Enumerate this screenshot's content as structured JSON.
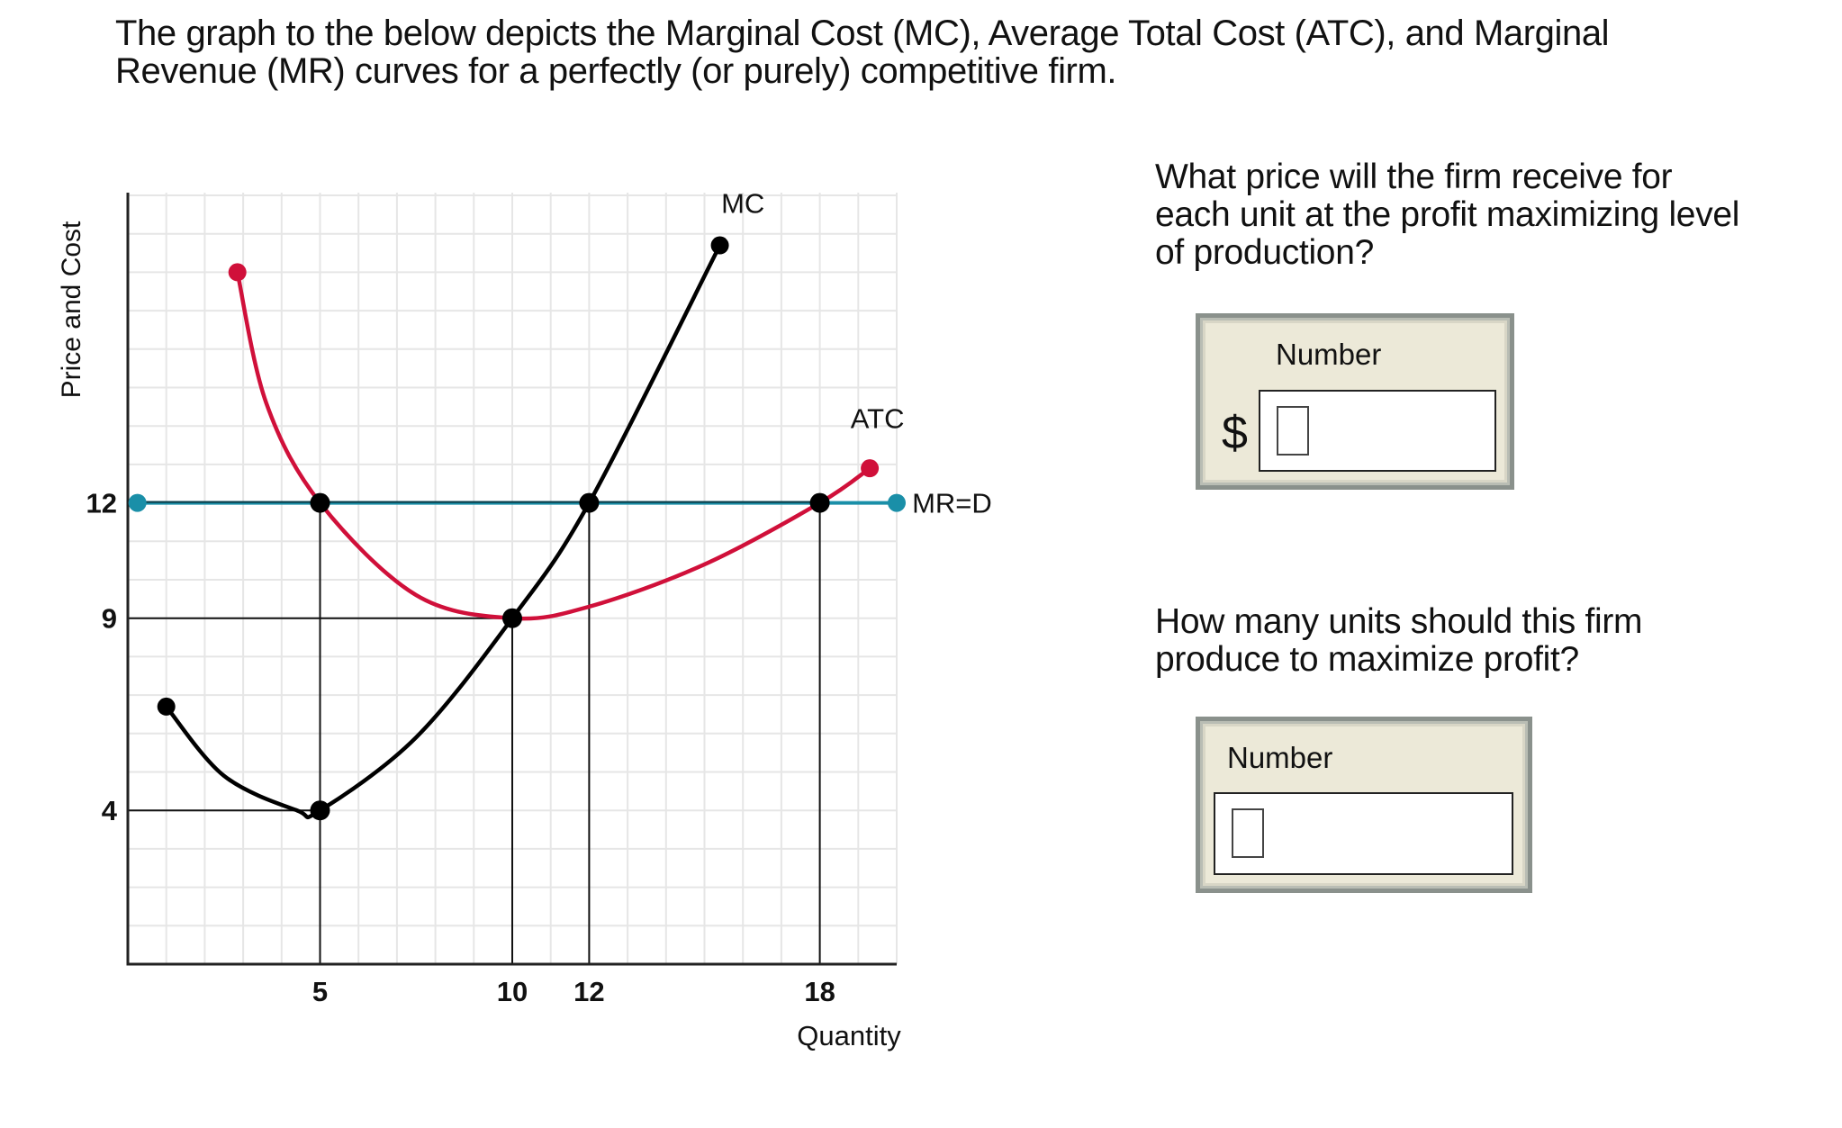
{
  "intro": {
    "line1": "The graph to the below depicts the Marginal Cost (MC), Average Total Cost (ATC), and Marginal",
    "line2": "Revenue (MR) curves for a perfectly (or purely) competitive firm."
  },
  "chart_data": {
    "type": "line",
    "title": "",
    "xlabel": "Quantity",
    "ylabel": "Price and Cost",
    "xlim": [
      0,
      20
    ],
    "ylim": [
      0,
      20
    ],
    "grid": true,
    "x_ticks": [
      5,
      10,
      12,
      18
    ],
    "y_ticks": [
      4,
      9,
      12
    ],
    "colors": {
      "MC": "#000000",
      "ATC": "#d0103a",
      "MR=D": "#1a8fa8",
      "grid": "#e6e6e6",
      "axis": "#222222"
    },
    "series": [
      {
        "name": "MC",
        "label": "MC",
        "points": [
          [
            1.0,
            6.7
          ],
          [
            2.5,
            4.9
          ],
          [
            4.4,
            4.0
          ],
          [
            5,
            4.0
          ],
          [
            7.5,
            5.9
          ],
          [
            10,
            9
          ],
          [
            12,
            12
          ],
          [
            15.4,
            18.7
          ]
        ],
        "marked_points": [
          [
            1.0,
            6.7
          ],
          [
            5,
            4
          ],
          [
            10,
            9
          ],
          [
            12,
            12
          ],
          [
            15.4,
            18.7
          ]
        ],
        "label_pos": [
          16.0,
          19.8
        ]
      },
      {
        "name": "ATC",
        "label": "ATC",
        "points": [
          [
            2.85,
            18.0
          ],
          [
            3.6,
            14.6
          ],
          [
            5,
            12
          ],
          [
            7.5,
            9.6
          ],
          [
            10,
            9
          ],
          [
            12,
            9.3
          ],
          [
            15,
            10.4
          ],
          [
            18,
            12
          ],
          [
            19.3,
            12.9
          ]
        ],
        "marked_points": [
          [
            2.85,
            18.0
          ],
          [
            5,
            12
          ],
          [
            18,
            12
          ],
          [
            19.3,
            12.9
          ]
        ],
        "label_pos": [
          19.5,
          14.2
        ]
      },
      {
        "name": "MR=D",
        "label": "MR=D",
        "points": [
          [
            0.25,
            12
          ],
          [
            20,
            12
          ]
        ],
        "marked_points": [
          [
            0.25,
            12
          ],
          [
            20,
            12
          ]
        ],
        "label_pos": [
          20.4,
          12
        ]
      }
    ],
    "intersections": [
      {
        "x": 5,
        "y": 12,
        "note": "ATC = MR"
      },
      {
        "x": 12,
        "y": 12,
        "note": "MC = MR"
      },
      {
        "x": 18,
        "y": 12,
        "note": "ATC = MR"
      },
      {
        "x": 10,
        "y": 9,
        "note": "MC = min ATC"
      },
      {
        "x": 5,
        "y": 4,
        "note": "min MC"
      }
    ],
    "reference_lines": {
      "vertical": [
        [
          5,
          12
        ],
        [
          10,
          9
        ],
        [
          12,
          12
        ],
        [
          18,
          12
        ]
      ],
      "horizontal": [
        [
          9,
          10
        ],
        [
          4,
          5
        ]
      ]
    }
  },
  "questions": [
    {
      "lines": [
        "What price will the firm receive for",
        "each unit at the profit maximizing level",
        "of production?"
      ],
      "input_label": "Number",
      "prefix": "$",
      "value": ""
    },
    {
      "lines": [
        "How many units should this firm",
        "produce to maximize profit?"
      ],
      "input_label": "Number",
      "prefix": "",
      "value": ""
    }
  ]
}
